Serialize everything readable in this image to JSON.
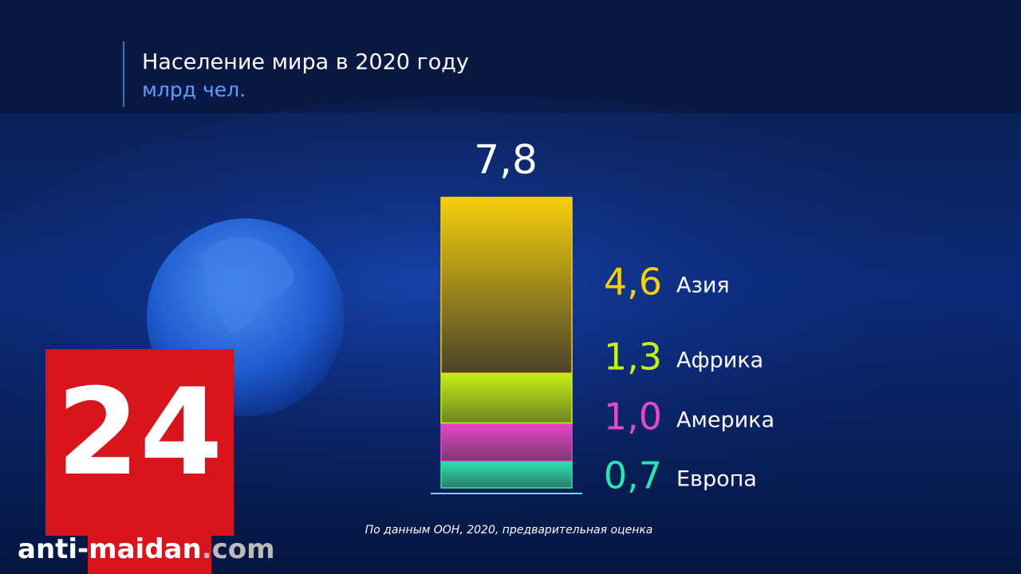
{
  "chart_data": {
    "type": "stacked-bar",
    "title": "Население мира в 2020 году",
    "subtitle": "млрд чел.",
    "total": {
      "value": 7.8,
      "label": "7,8"
    },
    "series": [
      {
        "name": "Европа",
        "color": "#2fe3b0",
        "values": [
          0.7
        ],
        "value_labels": [
          "0,7"
        ]
      },
      {
        "name": "Америка",
        "color": "#e548c8",
        "values": [
          1.0
        ],
        "value_labels": [
          "1,0"
        ]
      },
      {
        "name": "Африка",
        "color": "#c4f015",
        "values": [
          1.3
        ],
        "value_labels": [
          "1,3"
        ]
      },
      {
        "name": "Азия",
        "color": "#f7cf0c",
        "values": [
          4.6
        ],
        "value_labels": [
          "4,6"
        ]
      }
    ],
    "source": "По данным ООН, 2020, предварительная оценка"
  },
  "logo": {
    "text": "24"
  },
  "watermark": {
    "left": "anti-",
    "middle": "maidan",
    "right": ".com"
  }
}
